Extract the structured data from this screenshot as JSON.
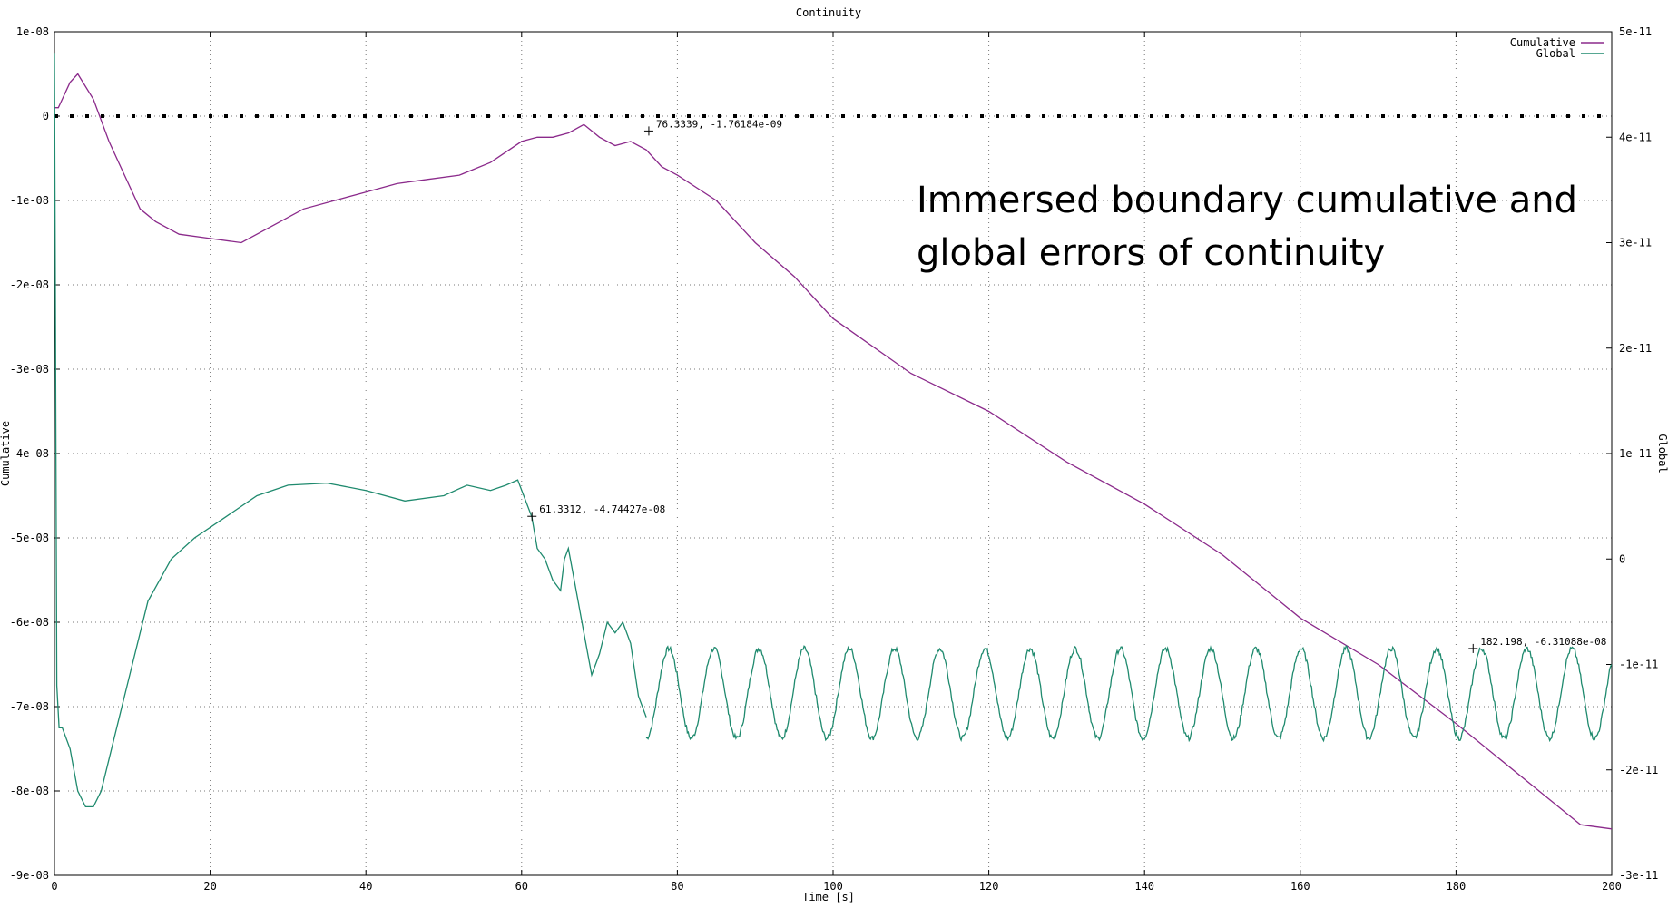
{
  "chart_data": {
    "type": "line",
    "title": "Continuity",
    "xlabel": "Time [s]",
    "ylabel": "Cumulative",
    "y2label": "Global",
    "xlim": [
      0,
      200
    ],
    "ylim": [
      -9e-08,
      1e-08
    ],
    "y2lim": [
      -3e-11,
      5e-11
    ],
    "x_ticks": [
      "0",
      "20",
      "40",
      "60",
      "80",
      "100",
      "120",
      "140",
      "160",
      "180",
      "200"
    ],
    "y_ticks": [
      "1e-08",
      "0",
      "-1e-08",
      "-2e-08",
      "-3e-08",
      "-4e-08",
      "-5e-08",
      "-6e-08",
      "-7e-08",
      "-8e-08",
      "-9e-08"
    ],
    "y2_ticks": [
      "5e-11",
      "4e-11",
      "3e-11",
      "2e-11",
      "1e-11",
      "0",
      "-1e-11",
      "-2e-11",
      "-3e-11"
    ],
    "grid": true,
    "legend_position": "top-right",
    "zero_line": true,
    "series": [
      {
        "name": "Cumulative",
        "axis": "left",
        "color": "#8b2a8b",
        "x": [
          0,
          0.5,
          1,
          2,
          3,
          5,
          7,
          9,
          11,
          13,
          16,
          20,
          24,
          28,
          32,
          36,
          40,
          44,
          48,
          52,
          56,
          60,
          62,
          64,
          66,
          68,
          70,
          72,
          74,
          76,
          78,
          80,
          85,
          90,
          95,
          100,
          110,
          120,
          130,
          140,
          150,
          160,
          170,
          180,
          190,
          196,
          200
        ],
        "y": [
          1e-09,
          1e-09,
          2e-09,
          4e-09,
          5e-09,
          2e-09,
          -3e-09,
          -7e-09,
          -1.1e-08,
          -1.25e-08,
          -1.4e-08,
          -1.45e-08,
          -1.5e-08,
          -1.3e-08,
          -1.1e-08,
          -1e-08,
          -9e-09,
          -8e-09,
          -7.5e-09,
          -7e-09,
          -5.5e-09,
          -3e-09,
          -2.5e-09,
          -2.5e-09,
          -2e-09,
          -1e-09,
          -2.5e-09,
          -3.5e-09,
          -3e-09,
          -4e-09,
          -6e-09,
          -7e-09,
          -1e-08,
          -1.5e-08,
          -1.9e-08,
          -2.4e-08,
          -3.05e-08,
          -3.5e-08,
          -4.1e-08,
          -4.6e-08,
          -5.2e-08,
          -5.95e-08,
          -6.5e-08,
          -7.2e-08,
          -7.95e-08,
          -8.4e-08,
          -8.45e-08
        ]
      },
      {
        "name": "Global",
        "axis": "right",
        "color": "#1f8a6e",
        "x": [
          0,
          0.3,
          0.6,
          1,
          2,
          3,
          4,
          5,
          6,
          8,
          10,
          12,
          15,
          18,
          22,
          26,
          30,
          35,
          40,
          45,
          50,
          53,
          56,
          58,
          59.5,
          61.3,
          62,
          63,
          64,
          65,
          65.5,
          66,
          67,
          68,
          69,
          70,
          71,
          72,
          73,
          74,
          75,
          76
        ],
        "y": [
          4.8e-11,
          -1.2e-11,
          -1.6e-11,
          -1.6e-11,
          -1.8e-11,
          -2.2e-11,
          -2.35e-11,
          -2.35e-11,
          -2.2e-11,
          -1.6e-11,
          -1e-11,
          -4e-12,
          0,
          2e-12,
          4e-12,
          6e-12,
          7e-12,
          7.2e-12,
          6.5e-12,
          5.5e-12,
          6e-12,
          7e-12,
          6.5e-12,
          7e-12,
          7.5e-12,
          4e-12,
          1e-12,
          0,
          -2e-12,
          -3e-12,
          0,
          1e-12,
          -3e-12,
          -7e-12,
          -1.1e-11,
          -9e-12,
          -6e-12,
          -7e-12,
          -6e-12,
          -8e-12,
          -1.3e-11,
          -1.5e-11
        ]
      },
      {
        "name": "Global",
        "axis": "right",
        "color": "#1f8a6e",
        "oscillation": {
          "x_start": 76,
          "x_end": 200,
          "period": 5.8,
          "max": -8.5e-12,
          "min": -1.7e-11
        }
      }
    ],
    "annotations": [
      {
        "x": 76.3339,
        "y": -1.76184e-09,
        "axis": "left",
        "label": "76.3339, -1.76184e-09"
      },
      {
        "x": 61.3312,
        "y": -4.74427e-08,
        "axis": "left",
        "label": "61.3312, -4.74427e-08"
      },
      {
        "x": 182.198,
        "y": -6.31088e-08,
        "axis": "left",
        "label": "182.198, -6.31088e-08"
      }
    ],
    "overlay_text": [
      "Immersed boundary cumulative and",
      "global errors of continuity"
    ]
  }
}
